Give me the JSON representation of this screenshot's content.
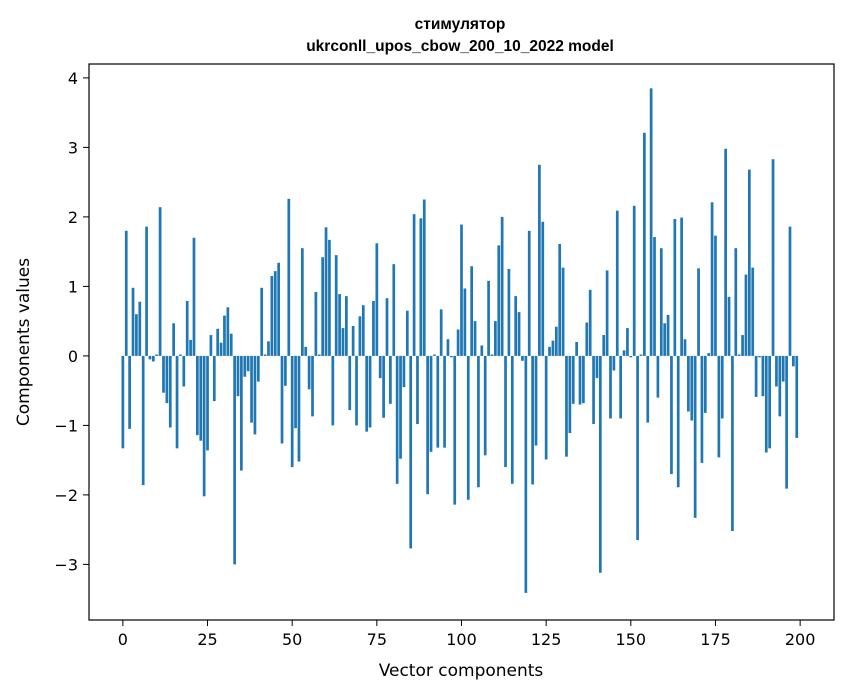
{
  "chart_data": {
    "type": "bar",
    "title": "стимулятор",
    "subtitle": "ukrconll_upos_cbow_200_10_2022 model",
    "xlabel": "Vector components",
    "ylabel": "Components values",
    "xlim": [
      -10,
      210
    ],
    "ylim": [
      -3.8,
      4.2
    ],
    "xticks": [
      0,
      25,
      50,
      75,
      100,
      125,
      150,
      175,
      200
    ],
    "yticks": [
      -3,
      -2,
      -1,
      0,
      1,
      2,
      3,
      4
    ],
    "xtick_labels": [
      "0",
      "25",
      "50",
      "75",
      "100",
      "125",
      "150",
      "175",
      "200"
    ],
    "ytick_labels": [
      "−3",
      "−2",
      "−1",
      "0",
      "1",
      "2",
      "3",
      "4"
    ],
    "bar_color": "#1f77b4",
    "grid": false,
    "x": [
      0,
      1,
      2,
      3,
      4,
      5,
      6,
      7,
      8,
      9,
      10,
      11,
      12,
      13,
      14,
      15,
      16,
      17,
      18,
      19,
      20,
      21,
      22,
      23,
      24,
      25,
      26,
      27,
      28,
      29,
      30,
      31,
      32,
      33,
      34,
      35,
      36,
      37,
      38,
      39,
      40,
      41,
      42,
      43,
      44,
      45,
      46,
      47,
      48,
      49,
      50,
      51,
      52,
      53,
      54,
      55,
      56,
      57,
      58,
      59,
      60,
      61,
      62,
      63,
      64,
      65,
      66,
      67,
      68,
      69,
      70,
      71,
      72,
      73,
      74,
      75,
      76,
      77,
      78,
      79,
      80,
      81,
      82,
      83,
      84,
      85,
      86,
      87,
      88,
      89,
      90,
      91,
      92,
      93,
      94,
      95,
      96,
      97,
      98,
      99,
      100,
      101,
      102,
      103,
      104,
      105,
      106,
      107,
      108,
      109,
      110,
      111,
      112,
      113,
      114,
      115,
      116,
      117,
      118,
      119,
      120,
      121,
      122,
      123,
      124,
      125,
      126,
      127,
      128,
      129,
      130,
      131,
      132,
      133,
      134,
      135,
      136,
      137,
      138,
      139,
      140,
      141,
      142,
      143,
      144,
      145,
      146,
      147,
      148,
      149,
      150,
      151,
      152,
      153,
      154,
      155,
      156,
      157,
      158,
      159,
      160,
      161,
      162,
      163,
      164,
      165,
      166,
      167,
      168,
      169,
      170,
      171,
      172,
      173,
      174,
      175,
      176,
      177,
      178,
      179,
      180,
      181,
      182,
      183,
      184,
      185,
      186,
      187,
      188,
      189,
      190,
      191,
      192,
      193,
      194,
      195,
      196,
      197,
      198,
      199
    ],
    "values": [
      -1.33,
      1.8,
      -1.05,
      0.98,
      0.6,
      0.78,
      -1.86,
      1.86,
      -0.05,
      -0.08,
      0.02,
      2.14,
      -0.53,
      -0.68,
      -1.03,
      0.47,
      -1.33,
      0.02,
      -0.44,
      0.79,
      0.23,
      1.7,
      -1.14,
      -1.22,
      -2.02,
      -1.36,
      0.3,
      -0.65,
      0.39,
      0.19,
      0.58,
      0.7,
      0.32,
      -3.0,
      -0.58,
      -1.65,
      -0.3,
      -0.22,
      -0.96,
      -1.13,
      -0.37,
      0.98,
      0.02,
      0.21,
      1.15,
      1.22,
      1.34,
      -1.26,
      -0.43,
      2.26,
      -1.6,
      -1.04,
      -1.52,
      1.55,
      0.13,
      -0.48,
      -0.87,
      0.92,
      0.02,
      1.42,
      1.85,
      1.67,
      -1.0,
      1.45,
      0.89,
      0.4,
      0.86,
      -0.78,
      0.43,
      -1.0,
      0.57,
      0.73,
      -1.09,
      -1.03,
      0.79,
      1.62,
      -0.32,
      -0.89,
      0.83,
      -0.69,
      1.32,
      -1.84,
      -1.48,
      -0.45,
      0.65,
      -2.77,
      2.04,
      -0.98,
      1.98,
      2.25,
      -1.99,
      -1.38,
      0.02,
      -1.32,
      0.67,
      -1.32,
      0.24,
      -0.02,
      -2.14,
      0.38,
      1.89,
      0.97,
      -2.07,
      1.29,
      0.5,
      -1.89,
      0.15,
      -1.43,
      1.08,
      0.02,
      0.5,
      1.59,
      2.0,
      -1.6,
      1.25,
      -1.84,
      0.86,
      0.63,
      -0.07,
      -3.41,
      1.8,
      -1.85,
      -1.29,
      2.75,
      1.93,
      -1.49,
      0.13,
      0.22,
      0.42,
      1.61,
      1.27,
      -1.45,
      -1.11,
      -0.69,
      0.2,
      -0.7,
      -0.68,
      0.48,
      0.95,
      -0.98,
      -0.32,
      -3.12,
      0.3,
      1.23,
      -0.9,
      -0.21,
      2.09,
      -0.9,
      0.08,
      0.4,
      -0.02,
      2.16,
      -2.65,
      0.02,
      3.21,
      -0.96,
      3.85,
      1.71,
      -0.6,
      1.55,
      0.47,
      0.59,
      -1.7,
      1.97,
      -1.89,
      1.99,
      0.24,
      -0.8,
      -0.93,
      -2.33,
      1.26,
      -1.54,
      -0.82,
      0.04,
      2.21,
      1.73,
      -1.46,
      -0.9,
      2.98,
      0.85,
      -2.52,
      1.55,
      0.02,
      0.3,
      1.17,
      2.68,
      1.27,
      -0.59,
      -0.02,
      -0.58,
      -1.39,
      -1.33,
      2.83,
      -0.44,
      -0.87,
      -0.37,
      -1.91,
      1.86,
      -0.15,
      -1.18
    ]
  }
}
